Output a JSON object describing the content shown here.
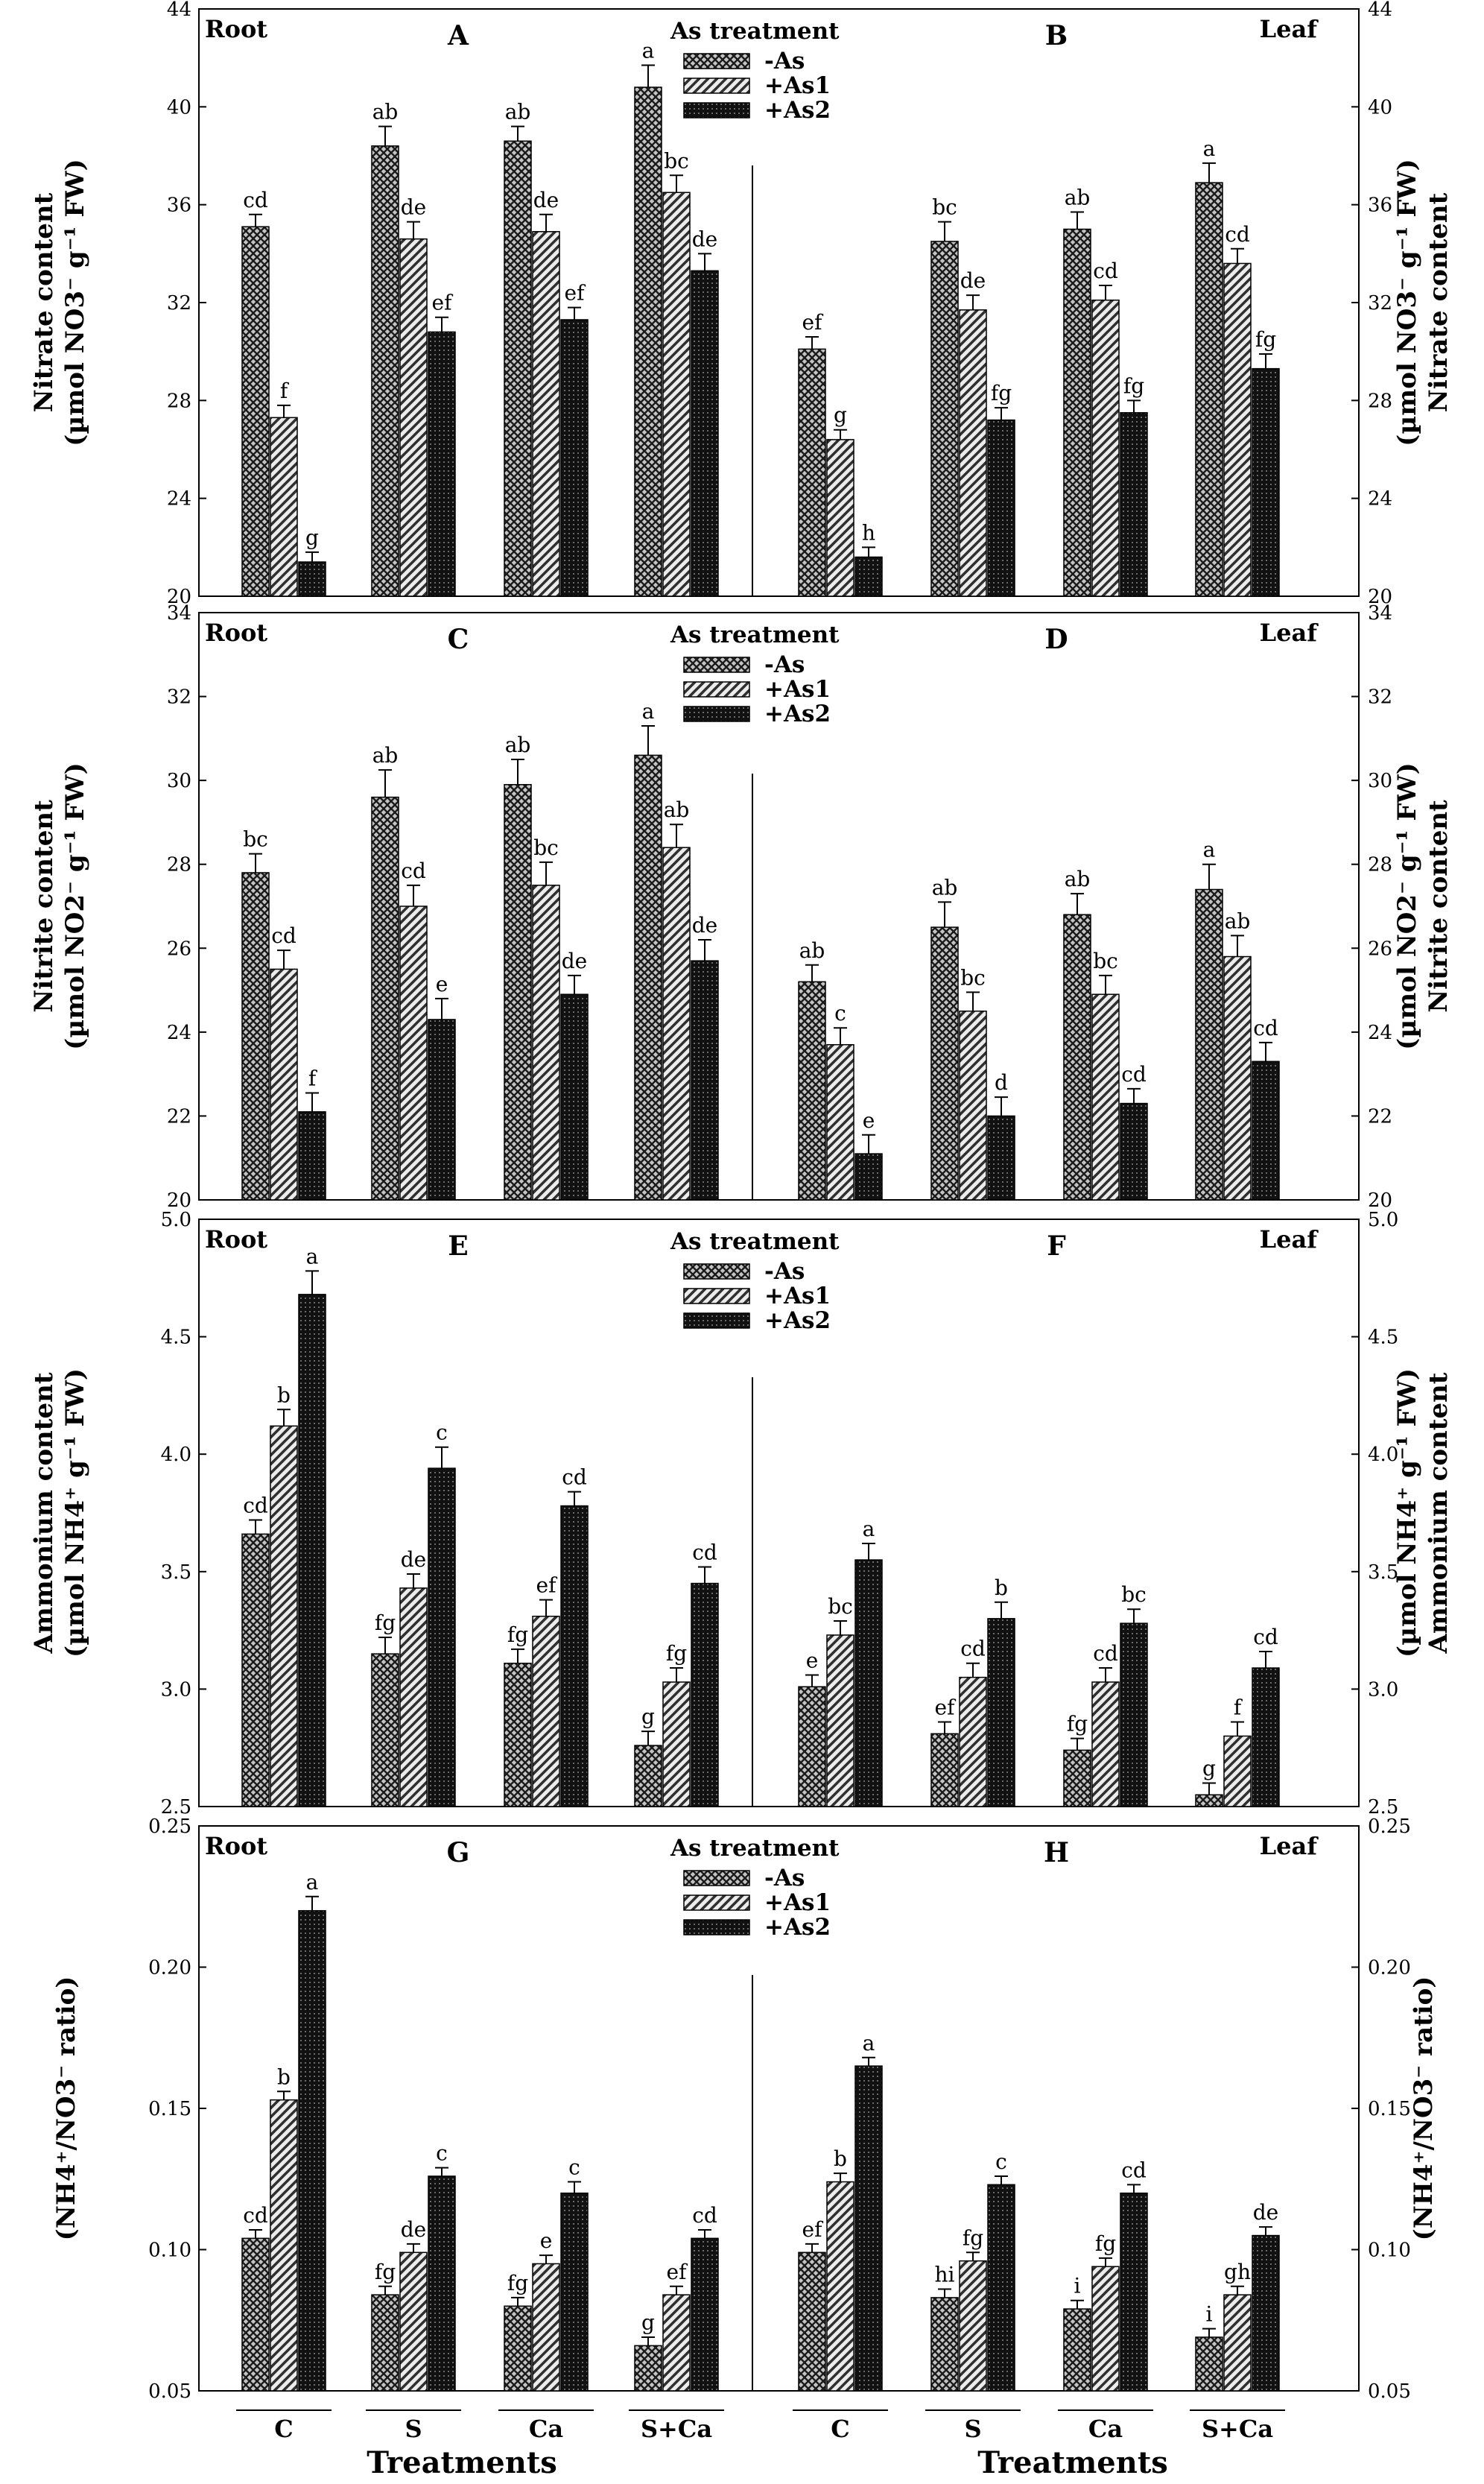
{
  "chart_data": {
    "type": "bar",
    "categories": [
      "C",
      "S",
      "Ca",
      "S+Ca"
    ],
    "xlabel": "Treatments",
    "legend": {
      "title": "As treatment",
      "entries": [
        {
          "name": "-As",
          "pattern": "cross"
        },
        {
          "name": "+As1",
          "pattern": "diag"
        },
        {
          "name": "+As2",
          "pattern": "dots"
        }
      ]
    },
    "rows": [
      {
        "ylim": [
          20,
          44
        ],
        "ticks": [
          "20",
          "24",
          "28",
          "32",
          "36",
          "40",
          "44"
        ],
        "ylabel_left": [
          "Nitrate content",
          "(µmol NO3⁻ g⁻¹ FW)"
        ],
        "ylabel_right": [
          "Nitrate content",
          "(µmol NO3⁻ g⁻¹ FW)"
        ],
        "panels": [
          {
            "letter": "A",
            "tissue": "Root",
            "series": [
              {
                "name": "-As",
                "values": [
                  35.1,
                  38.4,
                  38.6,
                  40.8
                ],
                "errors": [
                  0.5,
                  0.8,
                  0.6,
                  0.9
                ],
                "labels": [
                  "cd",
                  "ab",
                  "ab",
                  "a"
                ]
              },
              {
                "name": "+As1",
                "values": [
                  27.3,
                  34.6,
                  34.9,
                  36.5
                ],
                "errors": [
                  0.5,
                  0.7,
                  0.7,
                  0.7
                ],
                "labels": [
                  "f",
                  "de",
                  "de",
                  "bc"
                ]
              },
              {
                "name": "+As2",
                "values": [
                  21.4,
                  30.8,
                  31.3,
                  33.3
                ],
                "errors": [
                  0.4,
                  0.6,
                  0.5,
                  0.7
                ],
                "labels": [
                  "g",
                  "ef",
                  "ef",
                  "de"
                ]
              }
            ]
          },
          {
            "letter": "B",
            "tissue": "Leaf",
            "series": [
              {
                "name": "-As",
                "values": [
                  30.1,
                  34.5,
                  35.0,
                  36.9
                ],
                "errors": [
                  0.5,
                  0.8,
                  0.7,
                  0.8
                ],
                "labels": [
                  "ef",
                  "bc",
                  "ab",
                  "a"
                ]
              },
              {
                "name": "+As1",
                "values": [
                  26.4,
                  31.7,
                  32.1,
                  33.6
                ],
                "errors": [
                  0.4,
                  0.6,
                  0.6,
                  0.6
                ],
                "labels": [
                  "g",
                  "de",
                  "cd",
                  "cd"
                ]
              },
              {
                "name": "+As2",
                "values": [
                  21.6,
                  27.2,
                  27.5,
                  29.3
                ],
                "errors": [
                  0.4,
                  0.5,
                  0.5,
                  0.6
                ],
                "labels": [
                  "h",
                  "fg",
                  "fg",
                  "fg"
                ]
              }
            ]
          }
        ]
      },
      {
        "ylim": [
          20,
          34
        ],
        "ticks": [
          "20",
          "22",
          "24",
          "26",
          "28",
          "30",
          "32",
          "34"
        ],
        "ylabel_left": [
          "Nitrite content",
          "(µmol NO2⁻ g⁻¹ FW)"
        ],
        "ylabel_right": [
          "Nitrite content",
          "(µmol NO2⁻ g⁻¹ FW)"
        ],
        "panels": [
          {
            "letter": "C",
            "tissue": "Root",
            "series": [
              {
                "name": "-As",
                "values": [
                  27.8,
                  29.6,
                  29.9,
                  30.6
                ],
                "errors": [
                  0.45,
                  0.65,
                  0.6,
                  0.7
                ],
                "labels": [
                  "bc",
                  "ab",
                  "ab",
                  "a"
                ]
              },
              {
                "name": "+As1",
                "values": [
                  25.5,
                  27.0,
                  27.5,
                  28.4
                ],
                "errors": [
                  0.45,
                  0.5,
                  0.55,
                  0.55
                ],
                "labels": [
                  "cd",
                  "cd",
                  "bc",
                  "ab"
                ]
              },
              {
                "name": "+As2",
                "values": [
                  22.1,
                  24.3,
                  24.9,
                  25.7
                ],
                "errors": [
                  0.45,
                  0.5,
                  0.45,
                  0.5
                ],
                "labels": [
                  "f",
                  "e",
                  "de",
                  "de"
                ]
              }
            ]
          },
          {
            "letter": "D",
            "tissue": "Leaf",
            "series": [
              {
                "name": "-As",
                "values": [
                  25.2,
                  26.5,
                  26.8,
                  27.4
                ],
                "errors": [
                  0.4,
                  0.6,
                  0.5,
                  0.6
                ],
                "labels": [
                  "ab",
                  "ab",
                  "ab",
                  "a"
                ]
              },
              {
                "name": "+As1",
                "values": [
                  23.7,
                  24.5,
                  24.9,
                  25.8
                ],
                "errors": [
                  0.4,
                  0.45,
                  0.45,
                  0.5
                ],
                "labels": [
                  "c",
                  "bc",
                  "bc",
                  "ab"
                ]
              },
              {
                "name": "+As2",
                "values": [
                  21.1,
                  22.0,
                  22.3,
                  23.3
                ],
                "errors": [
                  0.45,
                  0.45,
                  0.35,
                  0.45
                ],
                "labels": [
                  "e",
                  "d",
                  "cd",
                  "cd"
                ]
              }
            ]
          }
        ]
      },
      {
        "ylim": [
          2.5,
          5.0
        ],
        "ticks": [
          "2.5",
          "3.0",
          "3.5",
          "4.0",
          "4.5",
          "5.0"
        ],
        "ylabel_left": [
          "Ammonium content",
          "(µmol NH4⁺ g⁻¹ FW)"
        ],
        "ylabel_right": [
          "Ammonium content",
          "(µmol NH4⁺ g⁻¹ FW)"
        ],
        "panels": [
          {
            "letter": "E",
            "tissue": "Root",
            "series": [
              {
                "name": "-As",
                "values": [
                  3.66,
                  3.15,
                  3.11,
                  2.76
                ],
                "errors": [
                  0.06,
                  0.07,
                  0.06,
                  0.06
                ],
                "labels": [
                  "cd",
                  "fg",
                  "fg",
                  "g"
                ]
              },
              {
                "name": "+As1",
                "values": [
                  4.12,
                  3.43,
                  3.31,
                  3.03
                ],
                "errors": [
                  0.07,
                  0.06,
                  0.07,
                  0.06
                ],
                "labels": [
                  "b",
                  "de",
                  "ef",
                  "fg"
                ]
              },
              {
                "name": "+As2",
                "values": [
                  4.68,
                  3.94,
                  3.78,
                  3.45
                ],
                "errors": [
                  0.1,
                  0.09,
                  0.06,
                  0.07
                ],
                "labels": [
                  "a",
                  "c",
                  "cd",
                  "cd"
                ]
              }
            ]
          },
          {
            "letter": "F",
            "tissue": "Leaf",
            "series": [
              {
                "name": "-As",
                "values": [
                  3.01,
                  2.81,
                  2.74,
                  2.55
                ],
                "errors": [
                  0.05,
                  0.05,
                  0.05,
                  0.05
                ],
                "labels": [
                  "e",
                  "ef",
                  "fg",
                  "g"
                ]
              },
              {
                "name": "+As1",
                "values": [
                  3.23,
                  3.05,
                  3.03,
                  2.8
                ],
                "errors": [
                  0.06,
                  0.06,
                  0.06,
                  0.06
                ],
                "labels": [
                  "bc",
                  "cd",
                  "cd",
                  "f"
                ]
              },
              {
                "name": "+As2",
                "values": [
                  3.55,
                  3.3,
                  3.28,
                  3.09
                ],
                "errors": [
                  0.07,
                  0.07,
                  0.06,
                  0.07
                ],
                "labels": [
                  "a",
                  "b",
                  "bc",
                  "cd"
                ]
              }
            ]
          }
        ]
      },
      {
        "ylim": [
          0.05,
          0.25
        ],
        "ticks": [
          "0.05",
          "0.10",
          "0.15",
          "0.20",
          "0.25"
        ],
        "ylabel_left": [
          "(NH4⁺/NO3⁻ ratio)"
        ],
        "ylabel_right": [
          "(NH4⁺/NO3⁻ ratio)"
        ],
        "panels": [
          {
            "letter": "G",
            "tissue": "Root",
            "series": [
              {
                "name": "-As",
                "values": [
                  0.104,
                  0.084,
                  0.08,
                  0.066
                ],
                "errors": [
                  0.003,
                  0.003,
                  0.003,
                  0.003
                ],
                "labels": [
                  "cd",
                  "fg",
                  "fg",
                  "g"
                ]
              },
              {
                "name": "+As1",
                "values": [
                  0.153,
                  0.099,
                  0.095,
                  0.084
                ],
                "errors": [
                  0.003,
                  0.003,
                  0.003,
                  0.003
                ],
                "labels": [
                  "b",
                  "de",
                  "e",
                  "ef"
                ]
              },
              {
                "name": "+As2",
                "values": [
                  0.22,
                  0.126,
                  0.12,
                  0.104
                ],
                "errors": [
                  0.005,
                  0.003,
                  0.004,
                  0.003
                ],
                "labels": [
                  "a",
                  "c",
                  "c",
                  "cd"
                ]
              }
            ]
          },
          {
            "letter": "H",
            "tissue": "Leaf",
            "series": [
              {
                "name": "-As",
                "values": [
                  0.099,
                  0.083,
                  0.079,
                  0.069
                ],
                "errors": [
                  0.003,
                  0.003,
                  0.003,
                  0.003
                ],
                "labels": [
                  "ef",
                  "hi",
                  "i",
                  "i"
                ]
              },
              {
                "name": "+As1",
                "values": [
                  0.124,
                  0.096,
                  0.094,
                  0.084
                ],
                "errors": [
                  0.003,
                  0.003,
                  0.003,
                  0.003
                ],
                "labels": [
                  "b",
                  "fg",
                  "fg",
                  "gh"
                ]
              },
              {
                "name": "+As2",
                "values": [
                  0.165,
                  0.123,
                  0.12,
                  0.105
                ],
                "errors": [
                  0.003,
                  0.003,
                  0.003,
                  0.003
                ],
                "labels": [
                  "a",
                  "c",
                  "cd",
                  "de"
                ]
              }
            ]
          }
        ]
      }
    ]
  }
}
